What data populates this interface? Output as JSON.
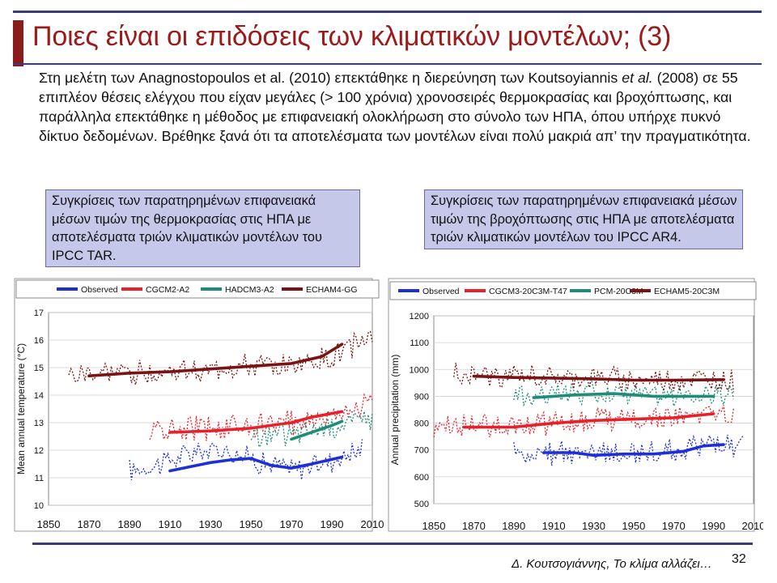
{
  "slide": {
    "title": "Ποιες είναι οι επιδόσεις των κλιματικών μοντέλων; (3)",
    "body_parts": [
      "Στη μελέτη των Anagnostopoulos et al. (2010) επεκτάθηκε η διερεύνηση των Koutsoyiannis ",
      "et al.",
      " (2008) σε 55 επιπλέον θέσεις ελέγχου που είχαν μεγάλες (> 100 χρόνια) χρονοσειρές θερμοκρασίας και βροχόπτωσης, και παράλληλα επεκτάθηκε η μέθοδος με επιφανειακή ολοκλήρωση στο σύνολο των ΗΠΑ, όπου υπήρχε πυκνό δίκτυο δεδομένων. Βρέθηκε ξανά ότι τα αποτελέσματα των μοντέλων είναι πολύ μακριά απ’ την πραγματικότητα."
    ],
    "caption_left": "Συγκρίσεις των παρατηρημένων επιφανειακά μέσων τιμών της θερμοκρασίας στις ΗΠΑ με αποτελέσματα τριών κλιματικών μοντέλων του IPCC TAR.",
    "caption_right": "Συγκρίσεις των παρατηρημένων επιφανειακά μέσων τιμών της βροχόπτωσης στις ΗΠΑ με αποτελέσματα τριών κλιματικών μοντέλων του IPCC AR4.",
    "footer": "Δ. Κουτσογιάννης, Το κλίμα αλλάζει…",
    "page_number": "32"
  },
  "colors": {
    "title": "#9b1b1b",
    "rule": "#3b3d7a",
    "caption_bg": "#c6c8ea",
    "observed": "#1f2fd6",
    "red": "#e8202a",
    "teal": "#1f8c78",
    "maroon": "#7a1414"
  },
  "chart_data": [
    {
      "type": "line",
      "ylabel": "Mean annual temperature (°C)",
      "xlim": [
        1850,
        2010
      ],
      "ylim": [
        10,
        17
      ],
      "xticks": [
        1850,
        1870,
        1890,
        1910,
        1930,
        1950,
        1970,
        1990,
        2010
      ],
      "yticks": [
        10,
        11,
        12,
        13,
        14,
        15,
        16,
        17
      ],
      "legend": "top",
      "series": [
        {
          "name": "Observed",
          "color": "#1f2fd6",
          "annual_x": [
            1890,
            2005
          ],
          "annual_mean": [
            11.25,
            11.55,
            11.95,
            12.0,
            11.55,
            11.3,
            11.6,
            12.05
          ],
          "smooth_x": [
            1910,
            1920,
            1930,
            1940,
            1950,
            1960,
            1970,
            1980,
            1995
          ],
          "smooth_y": [
            11.25,
            11.4,
            11.55,
            11.65,
            11.7,
            11.45,
            11.35,
            11.5,
            11.75
          ]
        },
        {
          "name": "CGCM2-A2",
          "color": "#e8202a",
          "annual_x": [
            1900,
            2010
          ],
          "annual_mean": [
            12.7,
            12.75,
            12.85,
            12.9,
            12.95,
            13.1,
            13.4,
            13.8
          ],
          "smooth_x": [
            1910,
            1930,
            1950,
            1960,
            1970,
            1980,
            1995
          ],
          "smooth_y": [
            12.65,
            12.7,
            12.8,
            12.9,
            13.0,
            13.2,
            13.4
          ]
        },
        {
          "name": "HADCM3-A2",
          "color": "#1f8c78",
          "annual_x": [
            1950,
            2010
          ],
          "annual_mean": [
            12.4,
            12.6,
            12.9,
            13.2
          ],
          "smooth_x": [
            1970,
            1980,
            1990,
            1995
          ],
          "smooth_y": [
            12.4,
            12.65,
            12.9,
            13.05
          ]
        },
        {
          "name": "ECHAM4-GG",
          "color": "#7a1414",
          "annual_x": [
            1860,
            2010
          ],
          "annual_mean": [
            14.7,
            14.8,
            14.85,
            14.9,
            15.0,
            15.1,
            15.3,
            16.2
          ],
          "smooth_x": [
            1870,
            1890,
            1910,
            1930,
            1950,
            1970,
            1985,
            1995
          ],
          "smooth_y": [
            14.7,
            14.8,
            14.85,
            14.95,
            15.05,
            15.15,
            15.4,
            15.85
          ]
        }
      ]
    },
    {
      "type": "line",
      "ylabel": "Annual precipitation (mm)",
      "xlim": [
        1850,
        2010
      ],
      "ylim": [
        500,
        1200
      ],
      "xticks": [
        1850,
        1870,
        1890,
        1910,
        1930,
        1950,
        1970,
        1990,
        2010
      ],
      "yticks": [
        500,
        600,
        700,
        800,
        900,
        1000,
        1100,
        1200
      ],
      "legend": "top",
      "series": [
        {
          "name": "Observed",
          "color": "#1f2fd6",
          "annual_x": [
            1890,
            2005
          ],
          "annual_mean": [
            700,
            690,
            680,
            690,
            690,
            700,
            715,
            720
          ],
          "smooth_x": [
            1905,
            1920,
            1930,
            1945,
            1960,
            1975,
            1985,
            1995
          ],
          "smooth_y": [
            690,
            690,
            680,
            685,
            685,
            695,
            715,
            720
          ]
        },
        {
          "name": "CGCM3-20C3M-T47",
          "color": "#e8202a",
          "annual_x": [
            1850,
            2000
          ],
          "annual_mean": [
            790,
            785,
            795,
            805,
            815,
            820,
            825,
            830
          ],
          "smooth_x": [
            1865,
            1890,
            1910,
            1930,
            1950,
            1970,
            1990
          ],
          "smooth_y": [
            785,
            785,
            800,
            810,
            815,
            820,
            835
          ]
        },
        {
          "name": "PCM-20C3M",
          "color": "#1f8c78",
          "annual_x": [
            1890,
            2000
          ],
          "annual_mean": [
            900,
            905,
            910,
            905,
            900,
            900
          ],
          "smooth_x": [
            1900,
            1920,
            1940,
            1960,
            1980,
            1990
          ],
          "smooth_y": [
            895,
            905,
            910,
            900,
            900,
            900
          ]
        },
        {
          "name": "ECHAM5-20C3M",
          "color": "#7a1414",
          "annual_x": [
            1860,
            2000
          ],
          "annual_mean": [
            980,
            975,
            970,
            965,
            960,
            960,
            958
          ],
          "smooth_x": [
            1870,
            1890,
            1910,
            1930,
            1950,
            1970,
            1995
          ],
          "smooth_y": [
            975,
            970,
            968,
            965,
            960,
            960,
            962
          ]
        }
      ]
    }
  ]
}
